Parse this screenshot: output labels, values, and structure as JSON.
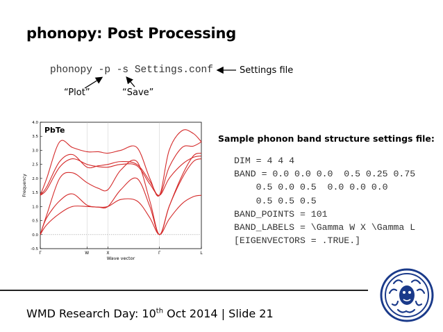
{
  "slide": {
    "title": "phonopy: Post Processing",
    "command": "phonopy -p -s Settings.conf",
    "settings_label": "Settings file",
    "plot_label": "“Plot”",
    "save_label": "“Save”",
    "sample_heading": "Sample phonon band structure settings file:",
    "code_lines": [
      "DIM = 4 4 4",
      "BAND = 0.0 0.0 0.0  0.5 0.25 0.75",
      "    0.5 0.0 0.5  0.0 0.0 0.0",
      "    0.5 0.5 0.5",
      "BAND_POINTS = 101",
      "BAND_LABELS = \\Gamma W X \\Gamma L",
      "[EIGENVECTORS = .TRUE.]"
    ],
    "footer_prefix": "WMD Research Day: 10",
    "footer_sup": "th",
    "footer_suffix": " Oct 2014 | Slide 21"
  },
  "chart_data": {
    "type": "line",
    "annotation": "PbTe",
    "xlabel": "Wave vector",
    "ylabel": "Frequency",
    "ylim": [
      -0.5,
      4.0
    ],
    "xlim": [
      0,
      1
    ],
    "yticks": [
      "-0.5",
      "0.0",
      "0.5",
      "1.0",
      "1.5",
      "2.0",
      "2.5",
      "3.0",
      "3.5",
      "4.0"
    ],
    "xticks": [
      {
        "label": "Γ",
        "x": 0.0
      },
      {
        "label": "W",
        "x": 0.29
      },
      {
        "label": "X",
        "x": 0.42
      },
      {
        "label": "Γ",
        "x": 0.74
      },
      {
        "label": "L",
        "x": 1.0
      }
    ],
    "grid": false,
    "series_color": "#d42a2a",
    "series": [
      {
        "x": [
          0,
          0.04,
          0.12,
          0.2,
          0.29,
          0.36,
          0.42,
          0.5,
          0.6,
          0.68,
          0.74,
          0.8,
          0.88,
          0.95,
          1.0
        ],
        "y": [
          0.0,
          0.35,
          0.75,
          1.0,
          1.0,
          0.98,
          1.0,
          1.25,
          1.2,
          0.6,
          0.0,
          0.55,
          1.1,
          1.35,
          1.4
        ]
      },
      {
        "x": [
          0,
          0.04,
          0.12,
          0.2,
          0.29,
          0.36,
          0.42,
          0.5,
          0.6,
          0.68,
          0.74,
          0.8,
          0.88,
          0.95,
          1.0
        ],
        "y": [
          0.0,
          0.6,
          1.2,
          1.45,
          1.05,
          0.98,
          1.0,
          1.6,
          2.0,
          1.0,
          0.0,
          1.0,
          2.0,
          2.6,
          2.7
        ]
      },
      {
        "x": [
          0,
          0.04,
          0.12,
          0.2,
          0.29,
          0.36,
          0.42,
          0.5,
          0.6,
          0.68,
          0.74,
          0.8,
          0.88,
          0.95,
          1.0
        ],
        "y": [
          0.0,
          0.7,
          2.0,
          2.2,
          1.85,
          1.65,
          1.6,
          2.3,
          2.6,
          1.2,
          0.0,
          1.0,
          2.1,
          2.8,
          2.9
        ]
      },
      {
        "x": [
          0,
          0.04,
          0.12,
          0.2,
          0.29,
          0.36,
          0.42,
          0.5,
          0.6,
          0.68,
          0.74,
          0.8,
          0.88,
          0.95,
          1.0
        ],
        "y": [
          1.4,
          1.6,
          2.4,
          2.7,
          2.5,
          2.42,
          2.4,
          2.5,
          2.45,
          1.8,
          1.4,
          2.0,
          2.5,
          2.75,
          2.8
        ]
      },
      {
        "x": [
          0,
          0.04,
          0.12,
          0.2,
          0.29,
          0.36,
          0.42,
          0.5,
          0.6,
          0.68,
          0.74,
          0.8,
          0.88,
          0.95,
          1.0
        ],
        "y": [
          1.4,
          1.7,
          2.6,
          2.85,
          2.4,
          2.45,
          2.5,
          2.6,
          2.5,
          1.9,
          1.4,
          2.4,
          3.1,
          3.15,
          3.3
        ]
      },
      {
        "x": [
          0,
          0.04,
          0.12,
          0.2,
          0.29,
          0.36,
          0.42,
          0.5,
          0.6,
          0.68,
          0.74,
          0.8,
          0.88,
          0.95,
          1.0
        ],
        "y": [
          1.4,
          2.0,
          3.3,
          3.1,
          2.95,
          2.95,
          2.9,
          3.0,
          3.1,
          2.0,
          1.4,
          3.0,
          3.7,
          3.6,
          3.3
        ]
      }
    ]
  }
}
